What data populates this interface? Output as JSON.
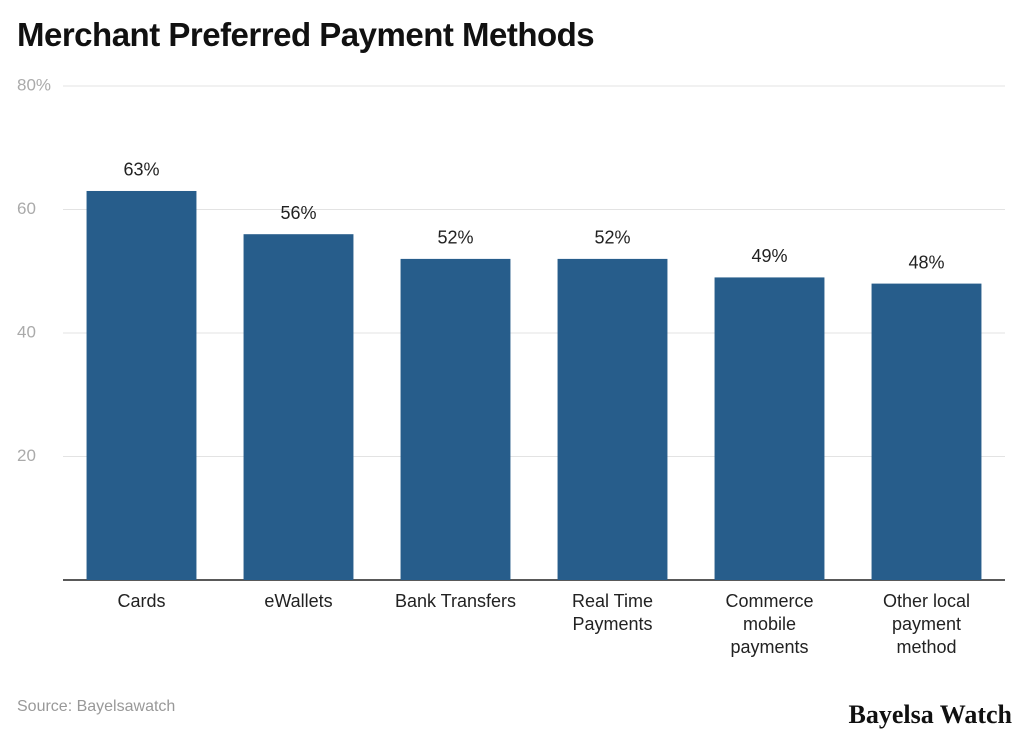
{
  "title": "Merchant Preferred Payment Methods",
  "chart_data": {
    "type": "bar",
    "categories": [
      "Cards",
      "eWallets",
      "Bank Transfers",
      "Real Time Payments",
      "Commerce mobile payments",
      "Other local payment method"
    ],
    "values": [
      63,
      56,
      52,
      52,
      49,
      48
    ],
    "value_labels": [
      "63%",
      "56%",
      "52%",
      "52%",
      "49%",
      "48%"
    ],
    "color": "#275d8b",
    "ylim": [
      0,
      80
    ],
    "yticks": [
      {
        "value": 80,
        "label": "80%"
      },
      60,
      40,
      20
    ],
    "grid": true
  },
  "source": "Source: Bayelsawatch",
  "brand": "Bayelsa Watch"
}
